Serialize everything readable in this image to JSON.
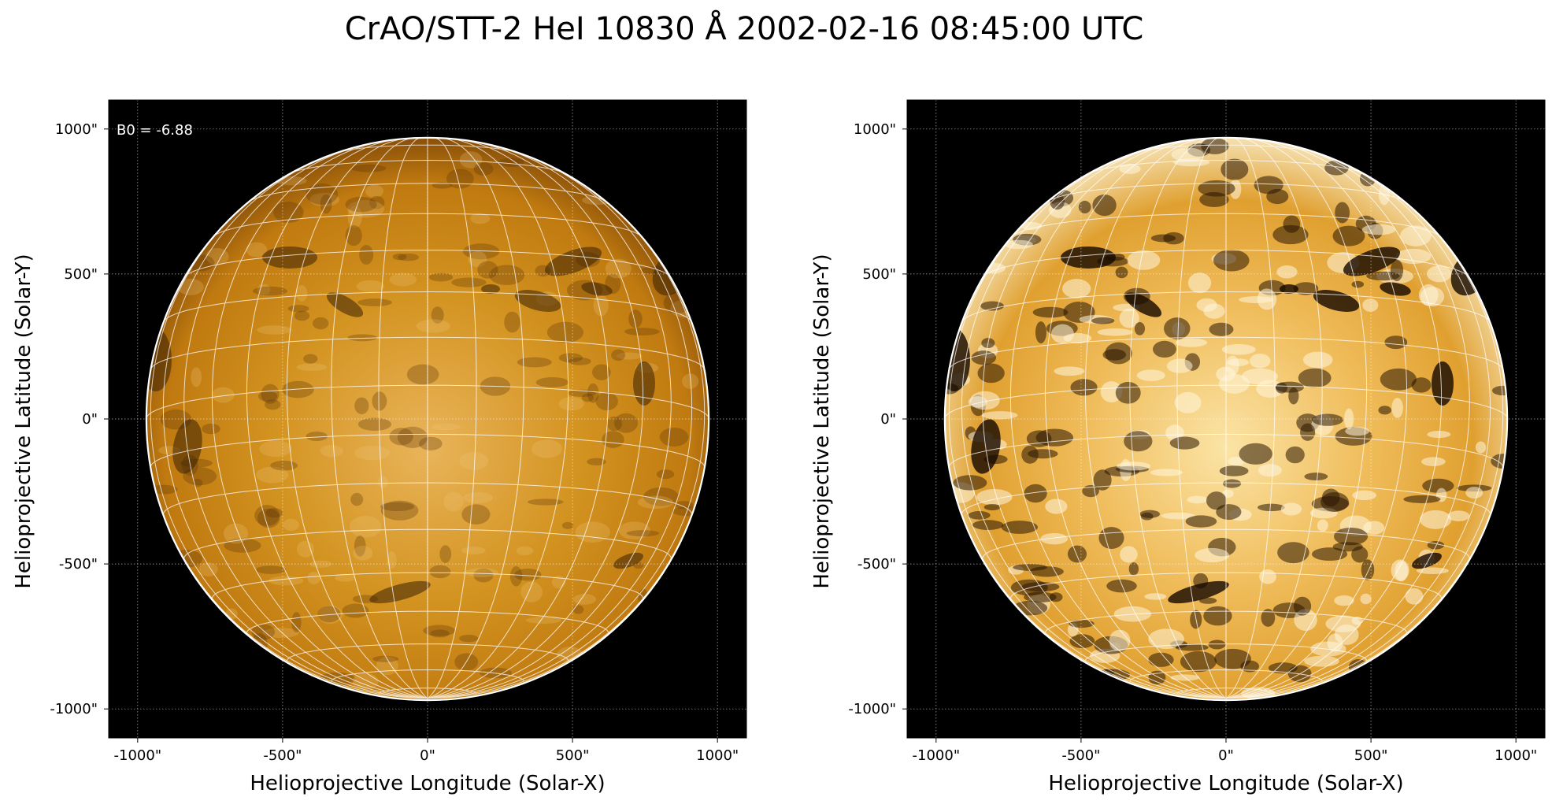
{
  "figure": {
    "title": "CrAO/STT-2 HeI 10830 Å 2002-02-16 08:45:00 UTC"
  },
  "axes": {
    "xlabel": "Helioprojective Longitude (Solar-X)",
    "ylabel": "Helioprojective Latitude (Solar-Y)",
    "x_ticks": [
      "-1000\"",
      "-500\"",
      "0\"",
      "500\"",
      "1000\""
    ],
    "y_ticks": [
      "1000\"",
      "500\"",
      "0\"",
      "-500\"",
      "-1000\""
    ],
    "x_range_arcsec": [
      -1100,
      1100
    ],
    "y_range_arcsec": [
      -1100,
      1100
    ],
    "grid": "dotted"
  },
  "panels": [
    {
      "id": "left",
      "annotation": "B0 = -6.88",
      "contrast": "normal",
      "colormap": "orange-heat"
    },
    {
      "id": "right",
      "annotation": "",
      "contrast": "enhanced",
      "colormap": "orange-heat"
    }
  ],
  "solar_disk": {
    "radius_arcsec": 970,
    "b0_deg": -6.88
  },
  "colors": {
    "background": "#000000",
    "disk_mid": "#c8830f",
    "disk_light": "#f2c766",
    "grid_line": "#ffffff"
  },
  "icons": {
    "legend": "none"
  }
}
